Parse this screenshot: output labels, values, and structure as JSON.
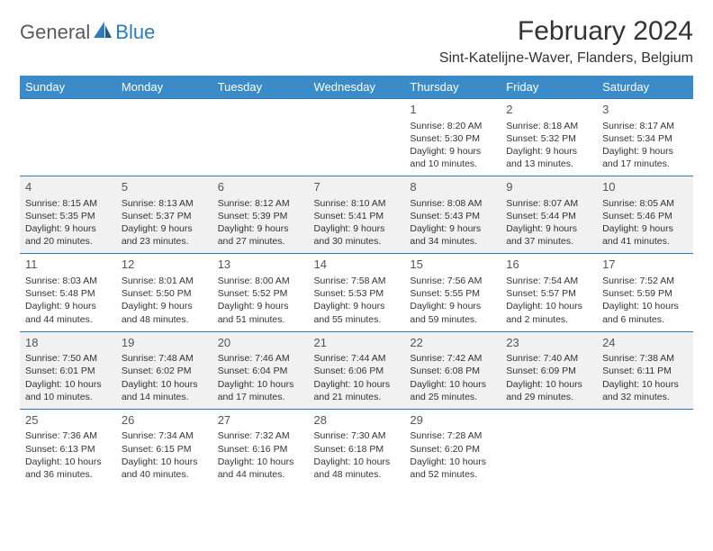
{
  "brand": {
    "general": "General",
    "blue": "Blue"
  },
  "header": {
    "month_title": "February 2024",
    "location": "Sint-Katelijne-Waver, Flanders, Belgium"
  },
  "colors": {
    "header_bg": "#3b8bc8",
    "header_text": "#ffffff",
    "row_border": "#2a7bbf",
    "alt_row_bg": "#f1f1f1",
    "text": "#333333",
    "logo_gray": "#5a5a5a",
    "logo_blue": "#2a7bbf"
  },
  "weekdays": [
    "Sunday",
    "Monday",
    "Tuesday",
    "Wednesday",
    "Thursday",
    "Friday",
    "Saturday"
  ],
  "weeks": [
    [
      null,
      null,
      null,
      null,
      {
        "n": "1",
        "sr": "Sunrise: 8:20 AM",
        "ss": "Sunset: 5:30 PM",
        "d1": "Daylight: 9 hours",
        "d2": "and 10 minutes."
      },
      {
        "n": "2",
        "sr": "Sunrise: 8:18 AM",
        "ss": "Sunset: 5:32 PM",
        "d1": "Daylight: 9 hours",
        "d2": "and 13 minutes."
      },
      {
        "n": "3",
        "sr": "Sunrise: 8:17 AM",
        "ss": "Sunset: 5:34 PM",
        "d1": "Daylight: 9 hours",
        "d2": "and 17 minutes."
      }
    ],
    [
      {
        "n": "4",
        "sr": "Sunrise: 8:15 AM",
        "ss": "Sunset: 5:35 PM",
        "d1": "Daylight: 9 hours",
        "d2": "and 20 minutes."
      },
      {
        "n": "5",
        "sr": "Sunrise: 8:13 AM",
        "ss": "Sunset: 5:37 PM",
        "d1": "Daylight: 9 hours",
        "d2": "and 23 minutes."
      },
      {
        "n": "6",
        "sr": "Sunrise: 8:12 AM",
        "ss": "Sunset: 5:39 PM",
        "d1": "Daylight: 9 hours",
        "d2": "and 27 minutes."
      },
      {
        "n": "7",
        "sr": "Sunrise: 8:10 AM",
        "ss": "Sunset: 5:41 PM",
        "d1": "Daylight: 9 hours",
        "d2": "and 30 minutes."
      },
      {
        "n": "8",
        "sr": "Sunrise: 8:08 AM",
        "ss": "Sunset: 5:43 PM",
        "d1": "Daylight: 9 hours",
        "d2": "and 34 minutes."
      },
      {
        "n": "9",
        "sr": "Sunrise: 8:07 AM",
        "ss": "Sunset: 5:44 PM",
        "d1": "Daylight: 9 hours",
        "d2": "and 37 minutes."
      },
      {
        "n": "10",
        "sr": "Sunrise: 8:05 AM",
        "ss": "Sunset: 5:46 PM",
        "d1": "Daylight: 9 hours",
        "d2": "and 41 minutes."
      }
    ],
    [
      {
        "n": "11",
        "sr": "Sunrise: 8:03 AM",
        "ss": "Sunset: 5:48 PM",
        "d1": "Daylight: 9 hours",
        "d2": "and 44 minutes."
      },
      {
        "n": "12",
        "sr": "Sunrise: 8:01 AM",
        "ss": "Sunset: 5:50 PM",
        "d1": "Daylight: 9 hours",
        "d2": "and 48 minutes."
      },
      {
        "n": "13",
        "sr": "Sunrise: 8:00 AM",
        "ss": "Sunset: 5:52 PM",
        "d1": "Daylight: 9 hours",
        "d2": "and 51 minutes."
      },
      {
        "n": "14",
        "sr": "Sunrise: 7:58 AM",
        "ss": "Sunset: 5:53 PM",
        "d1": "Daylight: 9 hours",
        "d2": "and 55 minutes."
      },
      {
        "n": "15",
        "sr": "Sunrise: 7:56 AM",
        "ss": "Sunset: 5:55 PM",
        "d1": "Daylight: 9 hours",
        "d2": "and 59 minutes."
      },
      {
        "n": "16",
        "sr": "Sunrise: 7:54 AM",
        "ss": "Sunset: 5:57 PM",
        "d1": "Daylight: 10 hours",
        "d2": "and 2 minutes."
      },
      {
        "n": "17",
        "sr": "Sunrise: 7:52 AM",
        "ss": "Sunset: 5:59 PM",
        "d1": "Daylight: 10 hours",
        "d2": "and 6 minutes."
      }
    ],
    [
      {
        "n": "18",
        "sr": "Sunrise: 7:50 AM",
        "ss": "Sunset: 6:01 PM",
        "d1": "Daylight: 10 hours",
        "d2": "and 10 minutes."
      },
      {
        "n": "19",
        "sr": "Sunrise: 7:48 AM",
        "ss": "Sunset: 6:02 PM",
        "d1": "Daylight: 10 hours",
        "d2": "and 14 minutes."
      },
      {
        "n": "20",
        "sr": "Sunrise: 7:46 AM",
        "ss": "Sunset: 6:04 PM",
        "d1": "Daylight: 10 hours",
        "d2": "and 17 minutes."
      },
      {
        "n": "21",
        "sr": "Sunrise: 7:44 AM",
        "ss": "Sunset: 6:06 PM",
        "d1": "Daylight: 10 hours",
        "d2": "and 21 minutes."
      },
      {
        "n": "22",
        "sr": "Sunrise: 7:42 AM",
        "ss": "Sunset: 6:08 PM",
        "d1": "Daylight: 10 hours",
        "d2": "and 25 minutes."
      },
      {
        "n": "23",
        "sr": "Sunrise: 7:40 AM",
        "ss": "Sunset: 6:09 PM",
        "d1": "Daylight: 10 hours",
        "d2": "and 29 minutes."
      },
      {
        "n": "24",
        "sr": "Sunrise: 7:38 AM",
        "ss": "Sunset: 6:11 PM",
        "d1": "Daylight: 10 hours",
        "d2": "and 32 minutes."
      }
    ],
    [
      {
        "n": "25",
        "sr": "Sunrise: 7:36 AM",
        "ss": "Sunset: 6:13 PM",
        "d1": "Daylight: 10 hours",
        "d2": "and 36 minutes."
      },
      {
        "n": "26",
        "sr": "Sunrise: 7:34 AM",
        "ss": "Sunset: 6:15 PM",
        "d1": "Daylight: 10 hours",
        "d2": "and 40 minutes."
      },
      {
        "n": "27",
        "sr": "Sunrise: 7:32 AM",
        "ss": "Sunset: 6:16 PM",
        "d1": "Daylight: 10 hours",
        "d2": "and 44 minutes."
      },
      {
        "n": "28",
        "sr": "Sunrise: 7:30 AM",
        "ss": "Sunset: 6:18 PM",
        "d1": "Daylight: 10 hours",
        "d2": "and 48 minutes."
      },
      {
        "n": "29",
        "sr": "Sunrise: 7:28 AM",
        "ss": "Sunset: 6:20 PM",
        "d1": "Daylight: 10 hours",
        "d2": "and 52 minutes."
      },
      null,
      null
    ]
  ]
}
